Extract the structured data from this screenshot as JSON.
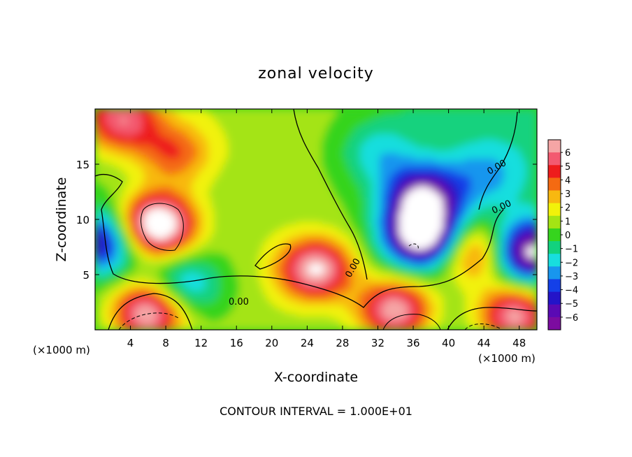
{
  "chart_data": {
    "type": "heatmap",
    "title": "zonal velocity",
    "xlabel": "X-coordinate",
    "ylabel": "Z-coordinate",
    "x_unit_left": "(×1000 m)",
    "x_unit_right": "(×1000 m)",
    "footer": "CONTOUR INTERVAL = 1.000E+01",
    "xlim": [
      0,
      50
    ],
    "ylim": [
      0,
      20
    ],
    "x_ticks": [
      "4",
      "8",
      "12",
      "16",
      "20",
      "24",
      "28",
      "32",
      "36",
      "40",
      "44",
      "48"
    ],
    "x_tick_values": [
      4,
      8,
      12,
      16,
      20,
      24,
      28,
      32,
      36,
      40,
      44,
      48
    ],
    "y_ticks": [
      "5",
      "10",
      "15"
    ],
    "y_tick_values": [
      5,
      10,
      15
    ],
    "colorbar": {
      "labels": [
        "6",
        "5",
        "4",
        "3",
        "2",
        "1",
        "0",
        "−1",
        "−2",
        "−3",
        "−4",
        "−5",
        "−6"
      ],
      "values": [
        6,
        5,
        4,
        3,
        2,
        1,
        0,
        -1,
        -2,
        -3,
        -4,
        -5,
        -6
      ],
      "colors": [
        "#f5a5a5",
        "#f35a70",
        "#ee1c1c",
        "#f46a12",
        "#f8b810",
        "#f2f20a",
        "#a4e414",
        "#36d41e",
        "#12d27e",
        "#18dede",
        "#1896ee",
        "#1440e8",
        "#2414c8",
        "#5a0ab4",
        "#7c0ca0"
      ],
      "saturated_color": "#ffffff"
    },
    "contour_labels": [
      "0.00",
      "0.00",
      "0.00",
      "0.00"
    ],
    "field_features": [
      {
        "kind": "max",
        "x": 7,
        "z": 9.5,
        "value": 8
      },
      {
        "kind": "max",
        "x": 25,
        "z": 5.5,
        "value": 6
      },
      {
        "kind": "max",
        "x": 6,
        "z": 1.6,
        "value": 6.5
      },
      {
        "kind": "max",
        "x": 34,
        "z": 1.8,
        "value": 6
      },
      {
        "kind": "max",
        "x": 47.5,
        "z": 1.3,
        "value": 6
      },
      {
        "kind": "max",
        "x": 3,
        "z": 19,
        "value": 4.5
      },
      {
        "kind": "max",
        "x": 43,
        "z": 7,
        "value": 4.5
      },
      {
        "kind": "max",
        "x": 9,
        "z": 16,
        "value": 3
      },
      {
        "kind": "min",
        "x": 37,
        "z": 8.5,
        "value": -8
      },
      {
        "kind": "min",
        "x": 49,
        "z": 7,
        "value": -7
      },
      {
        "kind": "min",
        "x": 37,
        "z": 12,
        "value": -6
      },
      {
        "kind": "min",
        "x": 0.5,
        "z": 8,
        "value": -5
      },
      {
        "kind": "min",
        "x": 10,
        "z": 4,
        "value": -3
      },
      {
        "kind": "min",
        "x": 44,
        "z": 14,
        "value": -2
      },
      {
        "kind": "min",
        "x": 32,
        "z": 16,
        "value": -2
      }
    ]
  }
}
